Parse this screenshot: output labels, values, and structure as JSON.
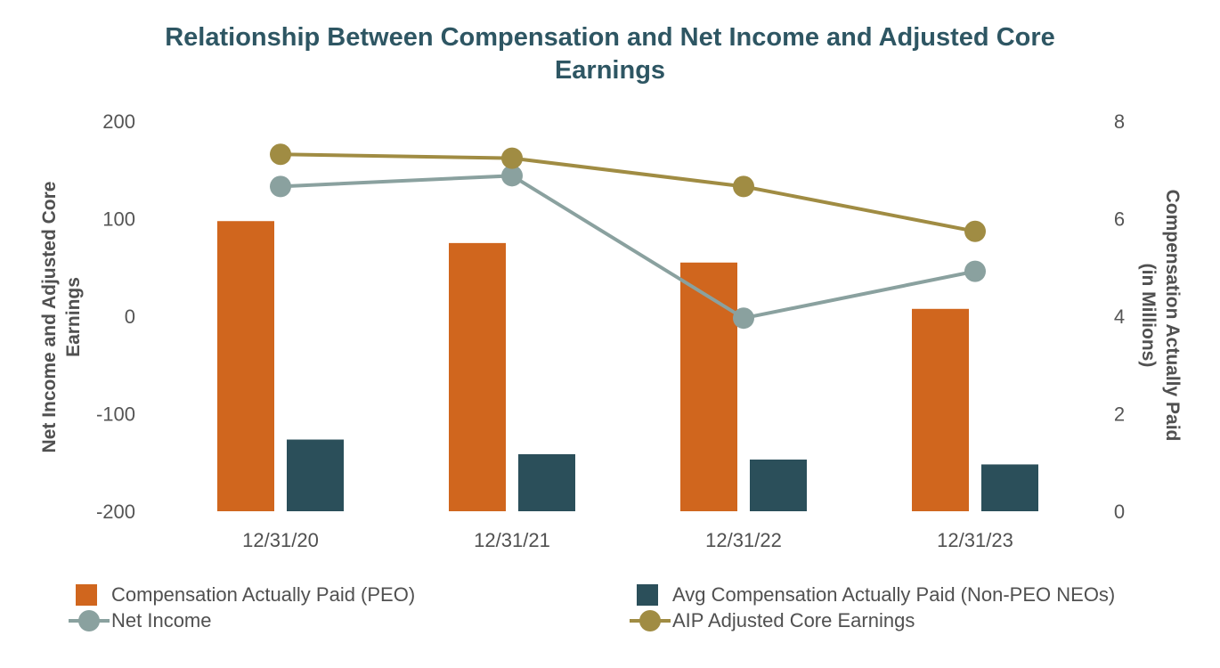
{
  "chart_data": {
    "type": "bar+line",
    "title_lines": [
      "Relationship Between Compensation and Net Income and Adjusted Core",
      "Earnings"
    ],
    "categories": [
      "12/31/20",
      "12/31/21",
      "12/31/22",
      "12/31/23"
    ],
    "left_axis": {
      "label_lines": [
        "Net Income and Adjusted Core",
        "Earnings"
      ],
      "ticks": [
        "200",
        "100",
        "0",
        "-100",
        "-200"
      ],
      "ylim": [
        -200,
        200
      ]
    },
    "right_axis": {
      "label_lines": [
        "Compensation Actually Paid",
        "(in Millions)"
      ],
      "ticks": [
        "8",
        "6",
        "4",
        "2",
        "0"
      ],
      "ylim": [
        0,
        8
      ]
    },
    "series": [
      {
        "name": "Compensation Actually Paid (PEO)",
        "kind": "bar",
        "axis": "right",
        "color": "#d0661e",
        "values": [
          5.95,
          5.5,
          5.1,
          4.15
        ]
      },
      {
        "name": "Avg Compensation Actually Paid (Non-PEO NEOs)",
        "kind": "bar",
        "axis": "right",
        "color": "#2b4f5a",
        "values": [
          1.47,
          1.17,
          1.06,
          0.96
        ]
      },
      {
        "name": "Net Income",
        "kind": "line",
        "axis": "left",
        "color": "#8aa19f",
        "values": [
          133,
          144,
          -2,
          46
        ]
      },
      {
        "name": "AIP Adjusted Core Earnings",
        "kind": "line",
        "axis": "left",
        "color": "#a08c43",
        "values": [
          166,
          162,
          133,
          87
        ]
      }
    ],
    "grid": false,
    "legend_position": "bottom"
  }
}
